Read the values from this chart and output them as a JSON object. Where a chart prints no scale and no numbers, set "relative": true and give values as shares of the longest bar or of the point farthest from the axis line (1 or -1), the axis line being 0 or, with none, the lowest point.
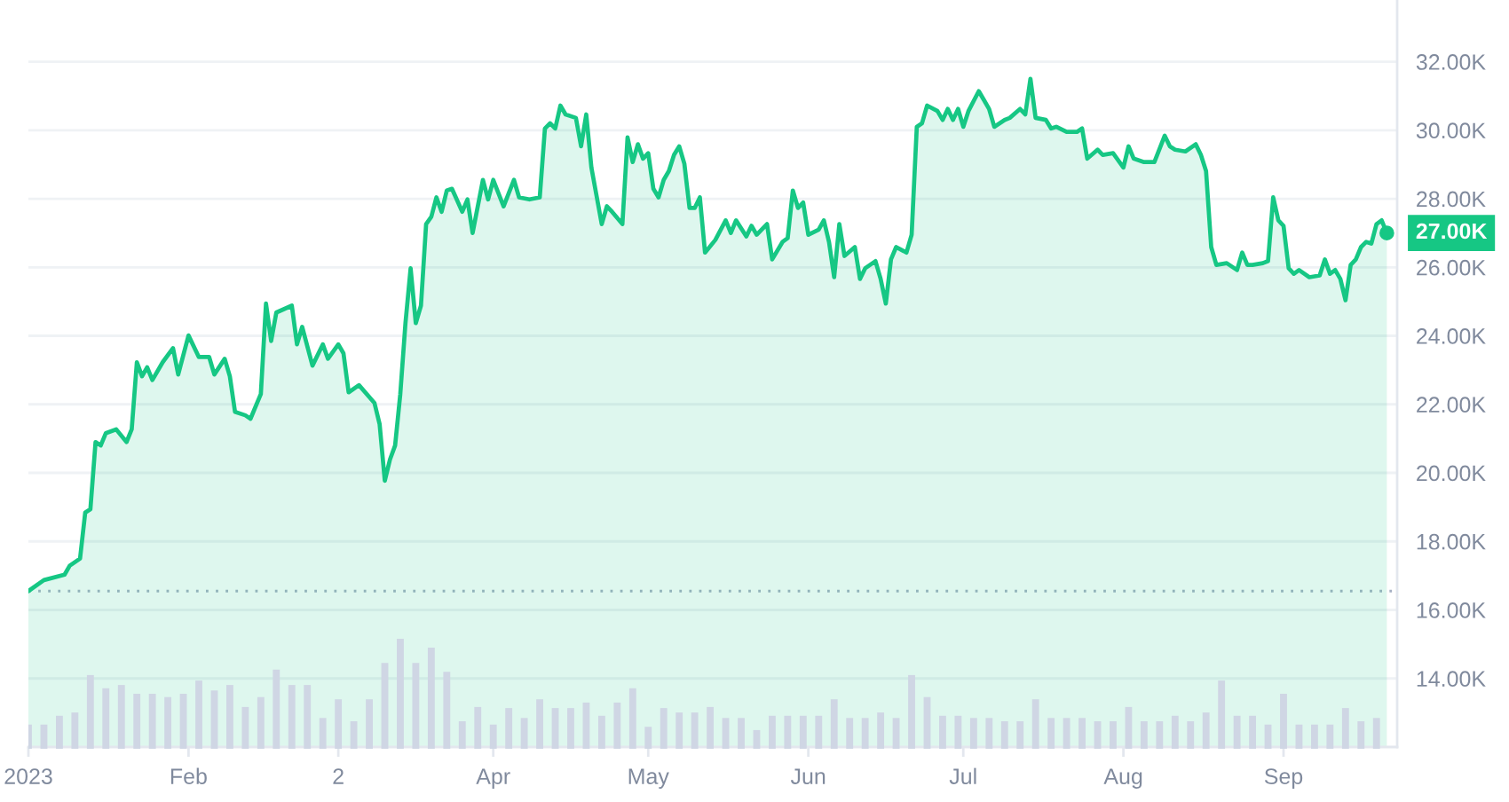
{
  "chart_data": [
    {
      "type": "area",
      "color": "#16c784",
      "x": [
        "2023-01-01",
        "2023-01-04",
        "2023-01-08",
        "2023-01-09",
        "2023-01-11",
        "2023-01-12",
        "2023-01-13",
        "2023-01-14",
        "2023-01-15",
        "2023-01-16",
        "2023-01-18",
        "2023-01-20",
        "2023-01-21",
        "2023-01-22",
        "2023-01-23",
        "2023-01-24",
        "2023-01-25",
        "2023-01-27",
        "2023-01-29",
        "2023-01-30",
        "2023-02-01",
        "2023-02-03",
        "2023-02-05",
        "2023-02-06",
        "2023-02-08",
        "2023-02-09",
        "2023-02-10",
        "2023-02-12",
        "2023-02-13",
        "2023-02-15",
        "2023-02-16",
        "2023-02-17",
        "2023-02-18",
        "2023-02-21",
        "2023-02-22",
        "2023-02-23",
        "2023-02-25",
        "2023-02-27",
        "2023-02-28",
        "2023-03-02",
        "2023-03-03",
        "2023-03-04",
        "2023-03-06",
        "2023-03-09",
        "2023-03-10",
        "2023-03-11",
        "2023-03-12",
        "2023-03-13",
        "2023-03-14",
        "2023-03-15",
        "2023-03-16",
        "2023-03-17",
        "2023-03-18",
        "2023-03-19",
        "2023-03-20",
        "2023-03-21",
        "2023-03-22",
        "2023-03-23",
        "2023-03-24",
        "2023-03-26",
        "2023-03-27",
        "2023-03-28",
        "2023-03-30",
        "2023-03-31",
        "2023-04-01",
        "2023-04-03",
        "2023-04-05",
        "2023-04-06",
        "2023-04-08",
        "2023-04-10",
        "2023-04-11",
        "2023-04-12",
        "2023-04-13",
        "2023-04-14",
        "2023-04-15",
        "2023-04-17",
        "2023-04-18",
        "2023-04-19",
        "2023-04-20",
        "2023-04-22",
        "2023-04-23",
        "2023-04-24",
        "2023-04-26",
        "2023-04-27",
        "2023-04-28",
        "2023-04-29",
        "2023-04-30",
        "2023-05-01",
        "2023-05-02",
        "2023-05-03",
        "2023-05-04",
        "2023-05-05",
        "2023-05-06",
        "2023-05-07",
        "2023-05-08",
        "2023-05-09",
        "2023-05-10",
        "2023-05-11",
        "2023-05-12",
        "2023-05-14",
        "2023-05-16",
        "2023-05-17",
        "2023-05-18",
        "2023-05-20",
        "2023-05-21",
        "2023-05-22",
        "2023-05-24",
        "2023-05-25",
        "2023-05-27",
        "2023-05-28",
        "2023-05-29",
        "2023-05-30",
        "2023-05-31",
        "2023-06-01",
        "2023-06-03",
        "2023-06-04",
        "2023-06-05",
        "2023-06-06",
        "2023-06-07",
        "2023-06-08",
        "2023-06-10",
        "2023-06-11",
        "2023-06-12",
        "2023-06-14",
        "2023-06-15",
        "2023-06-16",
        "2023-06-17",
        "2023-06-18",
        "2023-06-20",
        "2023-06-21",
        "2023-06-22",
        "2023-06-23",
        "2023-06-24",
        "2023-06-26",
        "2023-06-27",
        "2023-06-28",
        "2023-06-29",
        "2023-06-30",
        "2023-07-01",
        "2023-07-02",
        "2023-07-04",
        "2023-07-05",
        "2023-07-06",
        "2023-07-07",
        "2023-07-09",
        "2023-07-10",
        "2023-07-12",
        "2023-07-13",
        "2023-07-14",
        "2023-07-15",
        "2023-07-17",
        "2023-07-18",
        "2023-07-19",
        "2023-07-21",
        "2023-07-23",
        "2023-07-24",
        "2023-07-25",
        "2023-07-27",
        "2023-07-28",
        "2023-07-30",
        "2023-08-01",
        "2023-08-02",
        "2023-08-03",
        "2023-08-05",
        "2023-08-07",
        "2023-08-09",
        "2023-08-10",
        "2023-08-11",
        "2023-08-13",
        "2023-08-15",
        "2023-08-16",
        "2023-08-17",
        "2023-08-18",
        "2023-08-19",
        "2023-08-21",
        "2023-08-23",
        "2023-08-24",
        "2023-08-25",
        "2023-08-26",
        "2023-08-28",
        "2023-08-29",
        "2023-08-30",
        "2023-08-31",
        "2023-09-01",
        "2023-09-02",
        "2023-09-03",
        "2023-09-04",
        "2023-09-06",
        "2023-09-08",
        "2023-09-09",
        "2023-09-10",
        "2023-09-11",
        "2023-09-12",
        "2023-09-13",
        "2023-09-14",
        "2023-09-15",
        "2023-09-16",
        "2023-09-17",
        "2023-09-18",
        "2023-09-19",
        "2023-09-20",
        "2023-09-21"
      ],
      "values": [
        16550,
        16870,
        17030,
        17290,
        17500,
        18840,
        18940,
        20900,
        20800,
        21160,
        21270,
        20900,
        21270,
        23230,
        22820,
        23080,
        22710,
        23230,
        23640,
        22870,
        24010,
        23380,
        23380,
        22870,
        23330,
        22820,
        21780,
        21680,
        21580,
        22300,
        24940,
        23850,
        24680,
        24880,
        23750,
        24260,
        23130,
        23750,
        23330,
        23750,
        23490,
        22350,
        22560,
        22040,
        21420,
        19770,
        20390,
        20800,
        22300,
        24370,
        25970,
        24370,
        24880,
        27260,
        27470,
        28040,
        27620,
        28240,
        28290,
        27620,
        27980,
        27000,
        28550,
        27980,
        28550,
        27780,
        28550,
        28040,
        27980,
        28040,
        30050,
        30200,
        30050,
        30720,
        30460,
        30360,
        29530,
        30460,
        28910,
        27260,
        27780,
        27620,
        27260,
        29790,
        29070,
        29590,
        29170,
        29330,
        28290,
        28040,
        28550,
        28810,
        29280,
        29530,
        29020,
        27730,
        27730,
        28040,
        26430,
        26800,
        27370,
        27000,
        27370,
        26900,
        27210,
        26950,
        27260,
        26230,
        26740,
        26850,
        28240,
        27730,
        27890,
        26950,
        27100,
        27370,
        26740,
        25710,
        27260,
        26330,
        26590,
        25660,
        25970,
        26180,
        25660,
        24940,
        26230,
        26590,
        26430,
        26950,
        30100,
        30200,
        30720,
        30560,
        30300,
        30620,
        30300,
        30620,
        30100,
        30560,
        31140,
        30880,
        30620,
        30100,
        30300,
        30360,
        30620,
        30460,
        31500,
        30360,
        30300,
        30050,
        30100,
        29950,
        29950,
        30050,
        29170,
        29430,
        29280,
        29330,
        28910,
        29530,
        29170,
        29070,
        29070,
        29840,
        29530,
        29430,
        29380,
        29590,
        29280,
        28810,
        26590,
        26070,
        26120,
        25920,
        26430,
        26070,
        26070,
        26120,
        26180,
        28040,
        27370,
        27210,
        25970,
        25810,
        25920,
        25710,
        25760,
        26230,
        25810,
        25920,
        25660,
        25040,
        26070,
        26230,
        26590,
        26740,
        26690,
        27260,
        27370,
        27000
      ],
      "xlim": [
        "2023-01-01",
        "2023-09-23"
      ],
      "xticks": [
        {
          "value": "2023-01-01",
          "label": "2023"
        },
        {
          "value": "2023-02-01",
          "label": "Feb"
        },
        {
          "value": "2023-03-02",
          "label": "2"
        },
        {
          "value": "2023-04-01",
          "label": "Apr"
        },
        {
          "value": "2023-05-01",
          "label": "May"
        },
        {
          "value": "2023-06-01",
          "label": "Jun"
        },
        {
          "value": "2023-07-01",
          "label": "Jul"
        },
        {
          "value": "2023-08-01",
          "label": "Aug"
        },
        {
          "value": "2023-09-01",
          "label": "Sep"
        }
      ],
      "ylim": [
        12000,
        33800
      ],
      "yticks": [
        {
          "value": 14000,
          "label": "14.00K"
        },
        {
          "value": 16000,
          "label": "16.00K"
        },
        {
          "value": 18000,
          "label": "18.00K"
        },
        {
          "value": 20000,
          "label": "20.00K"
        },
        {
          "value": 22000,
          "label": "22.00K"
        },
        {
          "value": 24000,
          "label": "24.00K"
        },
        {
          "value": 26000,
          "label": "26.00K"
        },
        {
          "value": 28000,
          "label": "28.00K"
        },
        {
          "value": 30000,
          "label": "30.00K"
        },
        {
          "value": 32000,
          "label": "32.00K"
        }
      ],
      "grid": "y",
      "ref_lines": [
        {
          "axis": "y",
          "value": 16550,
          "line_style": "dotted",
          "color": "#a6b0c3"
        }
      ],
      "annotations": [
        {
          "text": "27.00K",
          "x": "2023-09-21",
          "y": 27000
        }
      ]
    },
    {
      "type": "bar",
      "relative": true,
      "color": "#cfd6e4",
      "xlim": [
        "2023-01-01",
        "2023-09-23"
      ],
      "x": [
        "2023-01-01",
        "2023-01-04",
        "2023-01-07",
        "2023-01-10",
        "2023-01-13",
        "2023-01-16",
        "2023-01-19",
        "2023-01-22",
        "2023-01-25",
        "2023-01-28",
        "2023-01-31",
        "2023-02-03",
        "2023-02-06",
        "2023-02-09",
        "2023-02-12",
        "2023-02-15",
        "2023-02-18",
        "2023-02-21",
        "2023-02-24",
        "2023-02-27",
        "2023-03-02",
        "2023-03-05",
        "2023-03-08",
        "2023-03-11",
        "2023-03-14",
        "2023-03-17",
        "2023-03-20",
        "2023-03-23",
        "2023-03-26",
        "2023-03-29",
        "2023-04-01",
        "2023-04-04",
        "2023-04-07",
        "2023-04-10",
        "2023-04-13",
        "2023-04-16",
        "2023-04-19",
        "2023-04-22",
        "2023-04-25",
        "2023-04-28",
        "2023-05-01",
        "2023-05-04",
        "2023-05-07",
        "2023-05-10",
        "2023-05-13",
        "2023-05-16",
        "2023-05-19",
        "2023-05-22",
        "2023-05-25",
        "2023-05-28",
        "2023-05-31",
        "2023-06-03",
        "2023-06-06",
        "2023-06-09",
        "2023-06-12",
        "2023-06-15",
        "2023-06-18",
        "2023-06-21",
        "2023-06-24",
        "2023-06-27",
        "2023-06-30",
        "2023-07-03",
        "2023-07-06",
        "2023-07-09",
        "2023-07-12",
        "2023-07-15",
        "2023-07-18",
        "2023-07-21",
        "2023-07-24",
        "2023-07-27",
        "2023-07-30",
        "2023-08-02",
        "2023-08-05",
        "2023-08-08",
        "2023-08-11",
        "2023-08-14",
        "2023-08-17",
        "2023-08-20",
        "2023-08-23",
        "2023-08-26",
        "2023-08-29",
        "2023-09-01",
        "2023-09-04",
        "2023-09-07",
        "2023-09-10",
        "2023-09-13",
        "2023-09-16",
        "2023-09-19"
      ],
      "values": [
        0.22,
        0.22,
        0.3,
        0.33,
        0.67,
        0.55,
        0.58,
        0.5,
        0.5,
        0.47,
        0.5,
        0.62,
        0.53,
        0.58,
        0.38,
        0.47,
        0.72,
        0.58,
        0.58,
        0.28,
        0.45,
        0.25,
        0.45,
        0.78,
        1,
        0.78,
        0.92,
        0.7,
        0.25,
        0.38,
        0.22,
        0.37,
        0.28,
        0.45,
        0.37,
        0.37,
        0.42,
        0.3,
        0.42,
        0.55,
        0.2,
        0.37,
        0.33,
        0.33,
        0.38,
        0.28,
        0.28,
        0.17,
        0.3,
        0.3,
        0.3,
        0.3,
        0.45,
        0.28,
        0.28,
        0.33,
        0.28,
        0.67,
        0.47,
        0.3,
        0.3,
        0.28,
        0.28,
        0.25,
        0.25,
        0.45,
        0.28,
        0.28,
        0.28,
        0.25,
        0.25,
        0.38,
        0.25,
        0.25,
        0.3,
        0.25,
        0.33,
        0.62,
        0.3,
        0.3,
        0.22,
        0.5,
        0.22,
        0.22,
        0.22,
        0.37,
        0.25,
        0.28
      ]
    }
  ]
}
